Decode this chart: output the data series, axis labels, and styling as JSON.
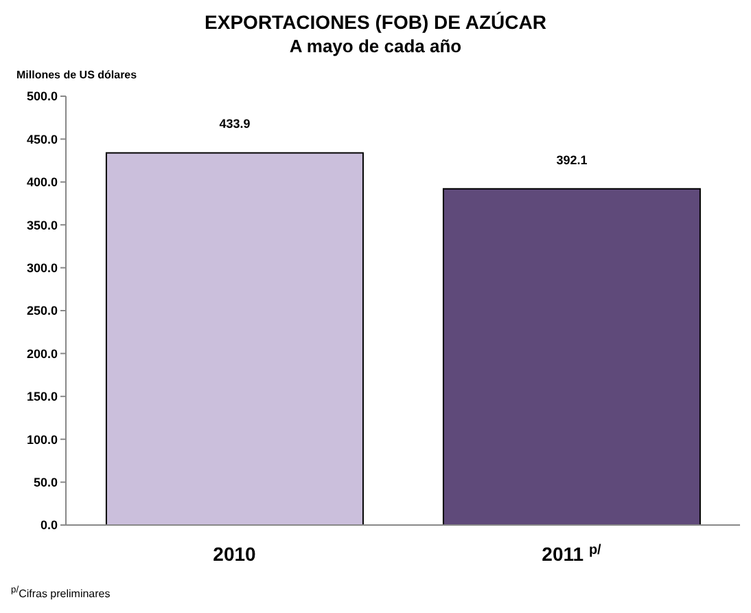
{
  "chart_data": {
    "type": "bar",
    "title": "EXPORTACIONES (FOB) DE AZÚCAR",
    "subtitle": "A mayo de cada año",
    "ylabel": "Millones de US dólares",
    "categories": [
      "2010",
      "2011 $^{p/}$"
    ],
    "values": [
      433.9,
      392.1
    ],
    "colors": [
      "#cbbfdc",
      "#5f4a7a"
    ],
    "ylim": [
      0,
      500
    ],
    "yticks": [
      {
        "value": 0,
        "label": "0.0"
      },
      {
        "value": 50,
        "label": "50.0"
      },
      {
        "value": 100,
        "label": "100.0"
      },
      {
        "value": 150,
        "label": "150.0"
      },
      {
        "value": 200,
        "label": "200.0"
      },
      {
        "value": 250,
        "label": "250.0"
      },
      {
        "value": 300,
        "label": "300.0"
      },
      {
        "value": 350,
        "label": "350.0"
      },
      {
        "value": 400,
        "label": "400.0"
      },
      {
        "value": 450,
        "label": "450.0"
      },
      {
        "value": 500,
        "label": "500.0"
      }
    ],
    "data_labels": true,
    "grid": false,
    "legend": false,
    "annotations": [
      "$^{p/}$Cifras preliminares"
    ]
  }
}
